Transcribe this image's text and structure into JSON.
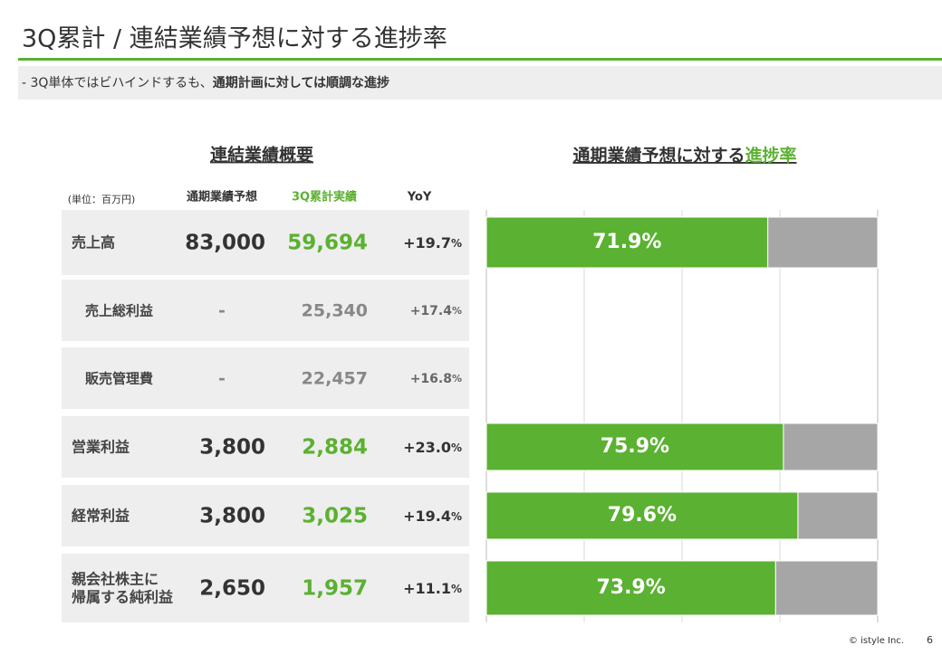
{
  "header": {
    "title": "3Q累計 / 連結業績予想に対する進捗率",
    "subtitle_prefix": "-  3Q単体ではビハインドするも、",
    "subtitle_bold": "通期計画に対しては順調な進捗"
  },
  "table": {
    "title": "連結業績概要",
    "unit": "(単位：百万円)",
    "columns": [
      "通期業績予想",
      "3Q累計実績",
      "YoY"
    ],
    "rows": [
      {
        "label": [
          "売上高"
        ],
        "forecast": "83,000",
        "actual": "59,694",
        "yoy": "+19.7%",
        "sub": false
      },
      {
        "label": [
          "売上総利益"
        ],
        "forecast": "-",
        "actual": "25,340",
        "yoy": "+17.4%",
        "sub": true
      },
      {
        "label": [
          "販売管理費"
        ],
        "forecast": "-",
        "actual": "22,457",
        "yoy": "+16.8%",
        "sub": true
      },
      {
        "label": [
          "営業利益"
        ],
        "forecast": "3,800",
        "actual": "2,884",
        "yoy": "+23.0%",
        "sub": false
      },
      {
        "label": [
          "経常利益"
        ],
        "forecast": "3,800",
        "actual": "3,025",
        "yoy": "+19.4%",
        "sub": false
      },
      {
        "label": [
          "親会社株主に",
          "帰属する純利益"
        ],
        "forecast": "2,650",
        "actual": "1,957",
        "yoy": "+11.1%",
        "sub": false
      }
    ]
  },
  "chart_data": {
    "type": "bar",
    "orientation": "horizontal",
    "title_prefix": "通期業績予想に対する",
    "title_highlight": "進捗率",
    "values": [
      71.9,
      null,
      null,
      75.9,
      79.6,
      73.9
    ],
    "value_labels": [
      "71.9%",
      null,
      null,
      "75.9%",
      "79.6%",
      "73.9%"
    ],
    "color": "#5bb131",
    "rest_color": "#a6a6a6",
    "xlim": [
      0,
      100
    ],
    "xticks": [
      0,
      25,
      50,
      75,
      100
    ],
    "grid": true
  },
  "footer": {
    "copyright": "© istyle Inc.",
    "page": "6"
  }
}
